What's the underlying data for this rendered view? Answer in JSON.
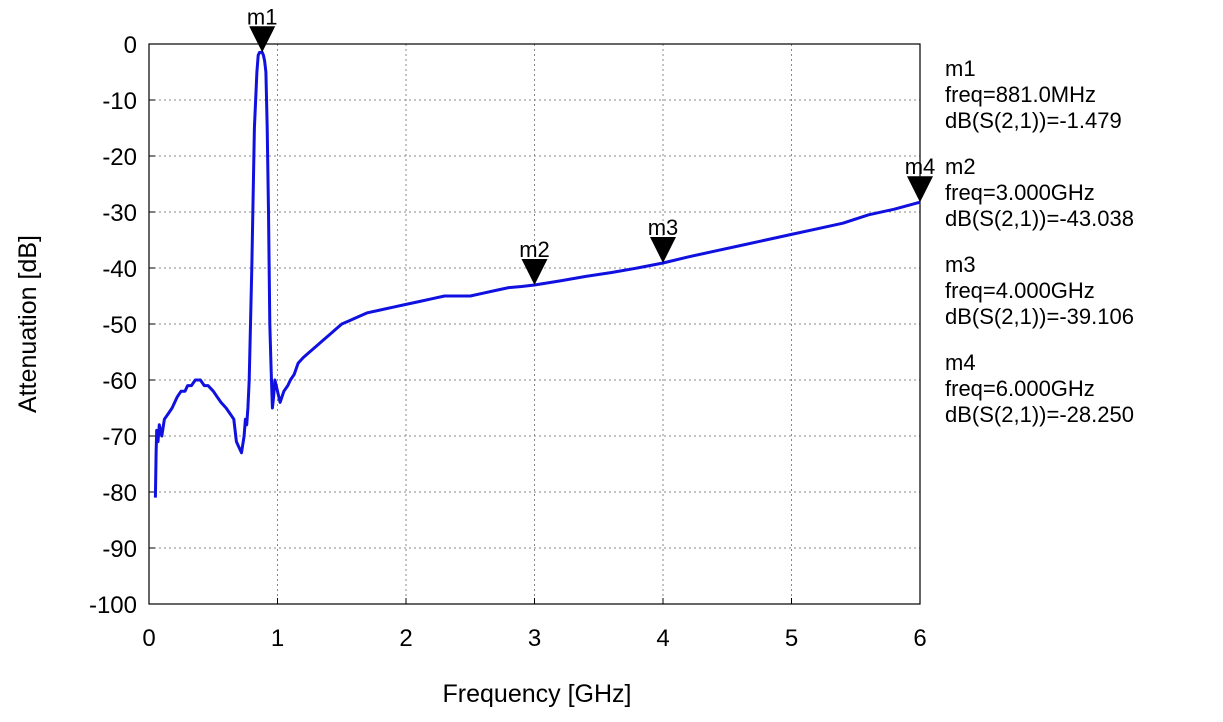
{
  "chart_data": {
    "type": "line",
    "xlabel": "Frequency [GHz]",
    "ylabel": "Attenuation [dB]",
    "xlim": [
      0,
      6
    ],
    "ylim": [
      -100,
      0
    ],
    "x_ticks": [
      "0",
      "1",
      "2",
      "3",
      "4",
      "5",
      "6"
    ],
    "y_ticks": [
      "0",
      "-10",
      "-20",
      "-30",
      "-40",
      "-50",
      "-60",
      "-70",
      "-80",
      "-90",
      "-100"
    ],
    "grid": true,
    "series": [
      {
        "color": "#1010e0",
        "x": [
          0.05,
          0.055,
          0.06,
          0.07,
          0.08,
          0.1,
          0.12,
          0.15,
          0.18,
          0.2,
          0.22,
          0.25,
          0.28,
          0.3,
          0.33,
          0.36,
          0.4,
          0.43,
          0.46,
          0.5,
          0.53,
          0.56,
          0.6,
          0.63,
          0.66,
          0.68,
          0.7,
          0.72,
          0.74,
          0.75,
          0.76,
          0.77,
          0.78,
          0.8,
          0.82,
          0.84,
          0.85,
          0.86,
          0.87,
          0.875,
          0.881,
          0.89,
          0.9,
          0.91,
          0.92,
          0.93,
          0.94,
          0.95,
          0.96,
          0.97,
          0.98,
          1.0,
          1.02,
          1.05,
          1.08,
          1.1,
          1.13,
          1.16,
          1.2,
          1.25,
          1.3,
          1.35,
          1.4,
          1.45,
          1.5,
          1.55,
          1.6,
          1.7,
          1.8,
          1.9,
          2.0,
          2.1,
          2.2,
          2.3,
          2.4,
          2.5,
          2.6,
          2.7,
          2.8,
          2.9,
          3.0,
          3.2,
          3.4,
          3.6,
          3.8,
          4.0,
          4.2,
          4.4,
          4.6,
          4.8,
          5.0,
          5.2,
          5.4,
          5.6,
          5.8,
          6.0
        ],
        "y": [
          -81,
          -73,
          -69,
          -71,
          -68,
          -70,
          -67,
          -66,
          -65,
          -64,
          -63,
          -62,
          -62,
          -61,
          -61,
          -60,
          -60,
          -61,
          -61,
          -62,
          -63,
          -64,
          -65,
          -66,
          -67,
          -71,
          -72,
          -73,
          -70,
          -67,
          -68,
          -65,
          -60,
          -40,
          -15,
          -5,
          -2,
          -1.5,
          -1.5,
          -1.5,
          -1.479,
          -2,
          -3,
          -5,
          -15,
          -30,
          -50,
          -58,
          -65,
          -63,
          -60,
          -62,
          -64,
          -62,
          -61,
          -60,
          -59,
          -57,
          -56,
          -55,
          -54,
          -53,
          -52,
          -51,
          -50,
          -49.5,
          -49,
          -48,
          -47.5,
          -47,
          -46.5,
          -46,
          -45.5,
          -45,
          -45,
          -45,
          -44.5,
          -44,
          -43.5,
          -43.3,
          -43.038,
          -42.3,
          -41.5,
          -40.8,
          -40,
          -39.106,
          -38,
          -37,
          -36,
          -35,
          -34,
          -33,
          -32,
          -30.5,
          -29.5,
          -28.25
        ]
      }
    ],
    "markers": [
      {
        "name": "m1",
        "freq": "881.0MHz",
        "x": 0.881,
        "y": -1.479,
        "expr": "dB(S(2,1))=-1.479"
      },
      {
        "name": "m2",
        "freq": "3.000GHz",
        "x": 3.0,
        "y": -43.038,
        "expr": "dB(S(2,1))=-43.038"
      },
      {
        "name": "m3",
        "freq": "4.000GHz",
        "x": 4.0,
        "y": -39.106,
        "expr": "dB(S(2,1))=-39.106"
      },
      {
        "name": "m4",
        "freq": "6.000GHz",
        "x": 6.0,
        "y": -28.25,
        "expr": "dB(S(2,1))=-28.250"
      }
    ],
    "readouts": [
      {
        "name": "m1",
        "freq_text": "freq=881.0MHz",
        "value_text": "dB(S(2,1))=-1.479"
      },
      {
        "name": "m2",
        "freq_text": "freq=3.000GHz",
        "value_text": "dB(S(2,1))=-43.038"
      },
      {
        "name": "m3",
        "freq_text": "freq=4.000GHz",
        "value_text": "dB(S(2,1))=-39.106"
      },
      {
        "name": "m4",
        "freq_text": "freq=6.000GHz",
        "value_text": "dB(S(2,1))=-28.250"
      }
    ]
  }
}
